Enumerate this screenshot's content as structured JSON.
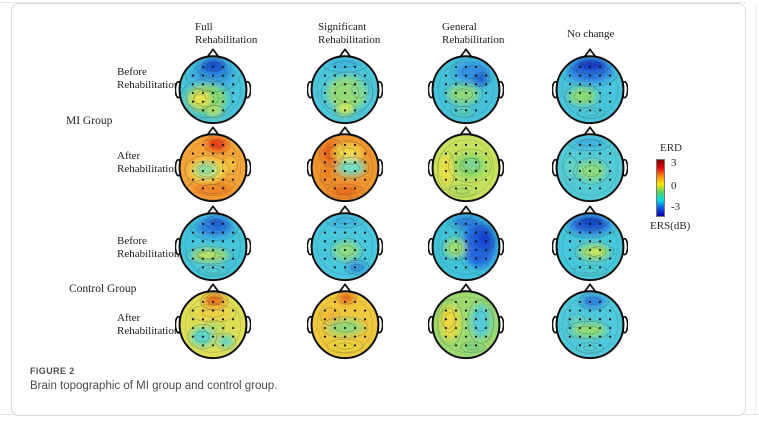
{
  "figure": {
    "column_headers": [
      {
        "line1": "Full",
        "line2": "Rehabilitation"
      },
      {
        "line1": "Significant",
        "line2": "Rehabilitation"
      },
      {
        "line1": "General",
        "line2": "Rehabilitation"
      },
      {
        "line1": "No change",
        "line2": ""
      }
    ],
    "row_labels": [
      {
        "line1": "Before",
        "line2": "Rehabilitation"
      },
      {
        "line1": "After",
        "line2": "Rehabilitation"
      },
      {
        "line1": "Before",
        "line2": "Rehabilitation"
      },
      {
        "line1": "After",
        "line2": "Rehabilitation"
      }
    ],
    "group_labels": [
      {
        "label": "MI Group"
      },
      {
        "label": "Control Group"
      }
    ]
  },
  "colorbar": {
    "title": "ERD",
    "ticks": [
      "3",
      "0",
      "-3"
    ],
    "unit": "ERS(dB)",
    "gradient": [
      "#7a0000",
      "#e80000",
      "#ff8a00",
      "#ffe400",
      "#5fd45f",
      "#00dede",
      "#0a58ee",
      "#0000a6"
    ]
  },
  "caption": {
    "label": "FIGURE 2",
    "text": "Brain topographic of MI group and control group."
  },
  "topoplots": {
    "colormap": "jet",
    "value_range_db": [
      -3,
      3
    ],
    "heads": [
      {
        "id": "mi-before-full",
        "row": 0,
        "col": 0,
        "base": "#49c4da",
        "blobs": [
          [
            50,
            27,
            32,
            20,
            "#35a2de"
          ],
          [
            51,
            16,
            20,
            12,
            "#2064dc"
          ],
          [
            52,
            12,
            12,
            7,
            "#1240cc"
          ],
          [
            40,
            63,
            30,
            22,
            "#84d672"
          ],
          [
            30,
            64,
            16,
            12,
            "#e7e44c"
          ],
          [
            52,
            83,
            12,
            7,
            "#bfe060"
          ]
        ]
      },
      {
        "id": "mi-before-significant",
        "row": 0,
        "col": 1,
        "base": "#4cc6da",
        "blobs": [
          [
            53,
            55,
            30,
            24,
            "#94da78"
          ],
          [
            73,
            49,
            10,
            10,
            "#7ed698"
          ],
          [
            50,
            80,
            13,
            8,
            "#d9e84e"
          ],
          [
            50,
            12,
            26,
            9,
            "#41b6de"
          ]
        ]
      },
      {
        "id": "mi-before-general",
        "row": 0,
        "col": 2,
        "base": "#45c2da",
        "blobs": [
          [
            60,
            24,
            26,
            16,
            "#3390e2"
          ],
          [
            73,
            35,
            9,
            8,
            "#1d50d0"
          ],
          [
            46,
            57,
            23,
            14,
            "#8cd87a"
          ],
          [
            46,
            83,
            14,
            6,
            "#66d0b2"
          ]
        ]
      },
      {
        "id": "mi-before-nochange",
        "row": 0,
        "col": 3,
        "base": "#47c4dc",
        "blobs": [
          [
            50,
            22,
            34,
            18,
            "#2f7ce2"
          ],
          [
            51,
            13,
            24,
            10,
            "#1238c8"
          ],
          [
            39,
            60,
            21,
            13,
            "#8cda74"
          ],
          [
            52,
            85,
            16,
            6,
            "#50cad4"
          ]
        ]
      },
      {
        "id": "mi-after-full",
        "row": 1,
        "col": 0,
        "base": "#f5a438",
        "blobs": [
          [
            50,
            82,
            30,
            12,
            "#ef8226"
          ],
          [
            56,
            15,
            15,
            10,
            "#e63a12"
          ],
          [
            41,
            54,
            26,
            17,
            "#eee24e"
          ],
          [
            39,
            53,
            16,
            10,
            "#85dda0"
          ],
          [
            75,
            46,
            9,
            11,
            "#f2c83e"
          ]
        ]
      },
      {
        "id": "mi-after-significant",
        "row": 1,
        "col": 1,
        "base": "#f0952e",
        "blobs": [
          [
            30,
            28,
            14,
            16,
            "#ec5c18"
          ],
          [
            54,
            28,
            22,
            13,
            "#f2d848"
          ],
          [
            59,
            50,
            21,
            12,
            "#72dfc4"
          ],
          [
            50,
            85,
            22,
            8,
            "#ec6a1c"
          ],
          [
            24,
            60,
            8,
            12,
            "#ee7c1e"
          ]
        ]
      },
      {
        "id": "mi-after-general",
        "row": 1,
        "col": 2,
        "base": "#c6e15c",
        "blobs": [
          [
            20,
            54,
            10,
            22,
            "#ecdc44"
          ],
          [
            56,
            47,
            25,
            19,
            "#8cd86a"
          ],
          [
            58,
            45,
            10,
            7,
            "#70d0a0"
          ],
          [
            45,
            85,
            16,
            7,
            "#a8da64"
          ]
        ]
      },
      {
        "id": "mi-after-nochange",
        "row": 1,
        "col": 3,
        "base": "#52cad6",
        "blobs": [
          [
            52,
            55,
            21,
            15,
            "#8cda80"
          ],
          [
            50,
            13,
            25,
            9,
            "#40b0e0"
          ],
          [
            21,
            50,
            8,
            13,
            "#68d4c2"
          ]
        ]
      },
      {
        "id": "control-before-full",
        "row": 2,
        "col": 0,
        "base": "#44c4da",
        "blobs": [
          [
            52,
            21,
            28,
            15,
            "#2e86e2"
          ],
          [
            56,
            14,
            14,
            8,
            "#1a58d6"
          ],
          [
            45,
            63,
            28,
            10,
            "#a4da6a"
          ],
          [
            40,
            62,
            11,
            5,
            "#cee258"
          ],
          [
            50,
            86,
            18,
            6,
            "#54cac8"
          ]
        ]
      },
      {
        "id": "control-before-significant",
        "row": 2,
        "col": 1,
        "base": "#48c6dc",
        "blobs": [
          [
            52,
            56,
            19,
            14,
            "#8eda82"
          ],
          [
            68,
            81,
            14,
            8,
            "#2f8cdc"
          ],
          [
            50,
            11,
            22,
            8,
            "#40b4e0"
          ]
        ]
      },
      {
        "id": "control-before-general",
        "row": 2,
        "col": 2,
        "base": "#3fc2da",
        "blobs": [
          [
            70,
            47,
            25,
            34,
            "#2468e0"
          ],
          [
            77,
            38,
            12,
            15,
            "#1440ce"
          ],
          [
            50,
            13,
            20,
            9,
            "#2c7ade"
          ],
          [
            34,
            52,
            16,
            14,
            "#9cde72"
          ]
        ]
      },
      {
        "id": "control-before-nochange",
        "row": 2,
        "col": 3,
        "base": "#45c6da",
        "blobs": [
          [
            50,
            18,
            32,
            14,
            "#2c6ee0"
          ],
          [
            52,
            12,
            20,
            8,
            "#1038ca"
          ],
          [
            56,
            58,
            23,
            11,
            "#a6de6a"
          ],
          [
            61,
            58,
            10,
            6,
            "#dcea52"
          ],
          [
            50,
            86,
            20,
            6,
            "#52cad4"
          ]
        ]
      },
      {
        "id": "control-after-full",
        "row": 3,
        "col": 0,
        "base": "#dede54",
        "blobs": [
          [
            52,
            15,
            16,
            10,
            "#f1801e"
          ],
          [
            52,
            11,
            9,
            6,
            "#ea5014"
          ],
          [
            50,
            33,
            27,
            10,
            "#ecd244"
          ],
          [
            34,
            68,
            17,
            14,
            "#58d4cc"
          ],
          [
            69,
            75,
            12,
            9,
            "#60d6c8"
          ],
          [
            52,
            54,
            12,
            8,
            "#abdc6a"
          ]
        ]
      },
      {
        "id": "control-after-significant",
        "row": 3,
        "col": 1,
        "base": "#efc83e",
        "blobs": [
          [
            52,
            10,
            11,
            7,
            "#e85418"
          ],
          [
            50,
            54,
            27,
            12,
            "#92d87c"
          ],
          [
            50,
            82,
            21,
            8,
            "#ead63e"
          ],
          [
            28,
            38,
            11,
            10,
            "#f0b236"
          ]
        ]
      },
      {
        "id": "control-after-general",
        "row": 3,
        "col": 2,
        "base": "#9cda70",
        "blobs": [
          [
            26,
            47,
            15,
            26,
            "#e8da42"
          ],
          [
            23,
            40,
            8,
            12,
            "#f2d83c"
          ],
          [
            72,
            45,
            15,
            25,
            "#52cad8"
          ],
          [
            60,
            84,
            14,
            6,
            "#7cd288"
          ]
        ]
      },
      {
        "id": "control-after-nochange",
        "row": 3,
        "col": 3,
        "base": "#4ec8da",
        "blobs": [
          [
            55,
            15,
            18,
            9,
            "#2c7ce0"
          ],
          [
            48,
            58,
            26,
            10,
            "#98dc6e"
          ],
          [
            30,
            44,
            10,
            8,
            "#64d0c0"
          ],
          [
            50,
            85,
            16,
            6,
            "#58ccd2"
          ]
        ]
      }
    ]
  }
}
